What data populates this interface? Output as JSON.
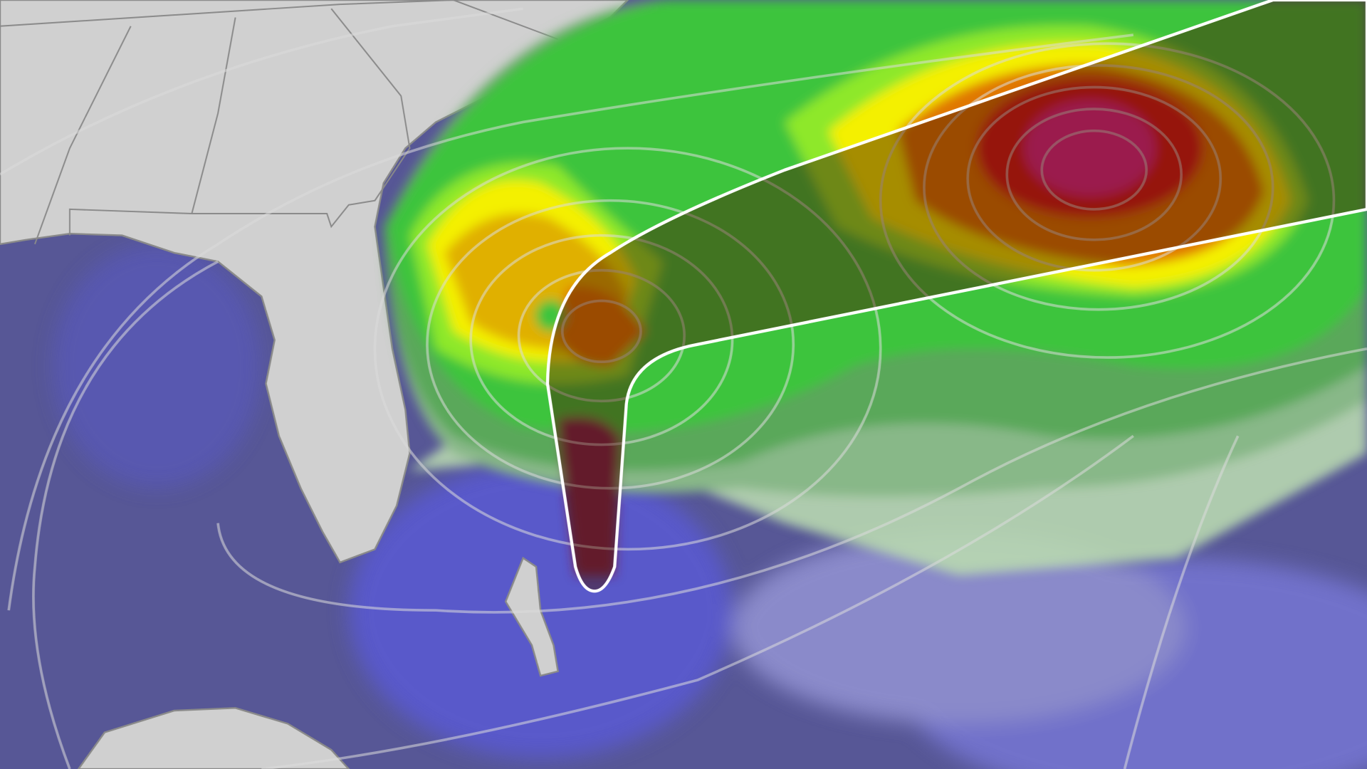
{
  "map": {
    "colors": {
      "ocean": "#575796",
      "ocean_bright": "#5a5ad8",
      "land": "#d0d0d0",
      "border": "#8a8a8a",
      "light_green": "#b8d8b0",
      "pale_green": "#88b888",
      "mid_green": "#5aa85a",
      "green": "#3cc43c",
      "lime": "#8ee82a",
      "yellow": "#f4f000",
      "gold": "#e0b000",
      "orange": "#e07800",
      "red": "#d81818",
      "magenta": "#e0208c",
      "cone_outline": "#ffffff",
      "isobar": "#dcdcdc"
    },
    "icons": [
      "forecast-cone",
      "low-pressure-center"
    ]
  }
}
